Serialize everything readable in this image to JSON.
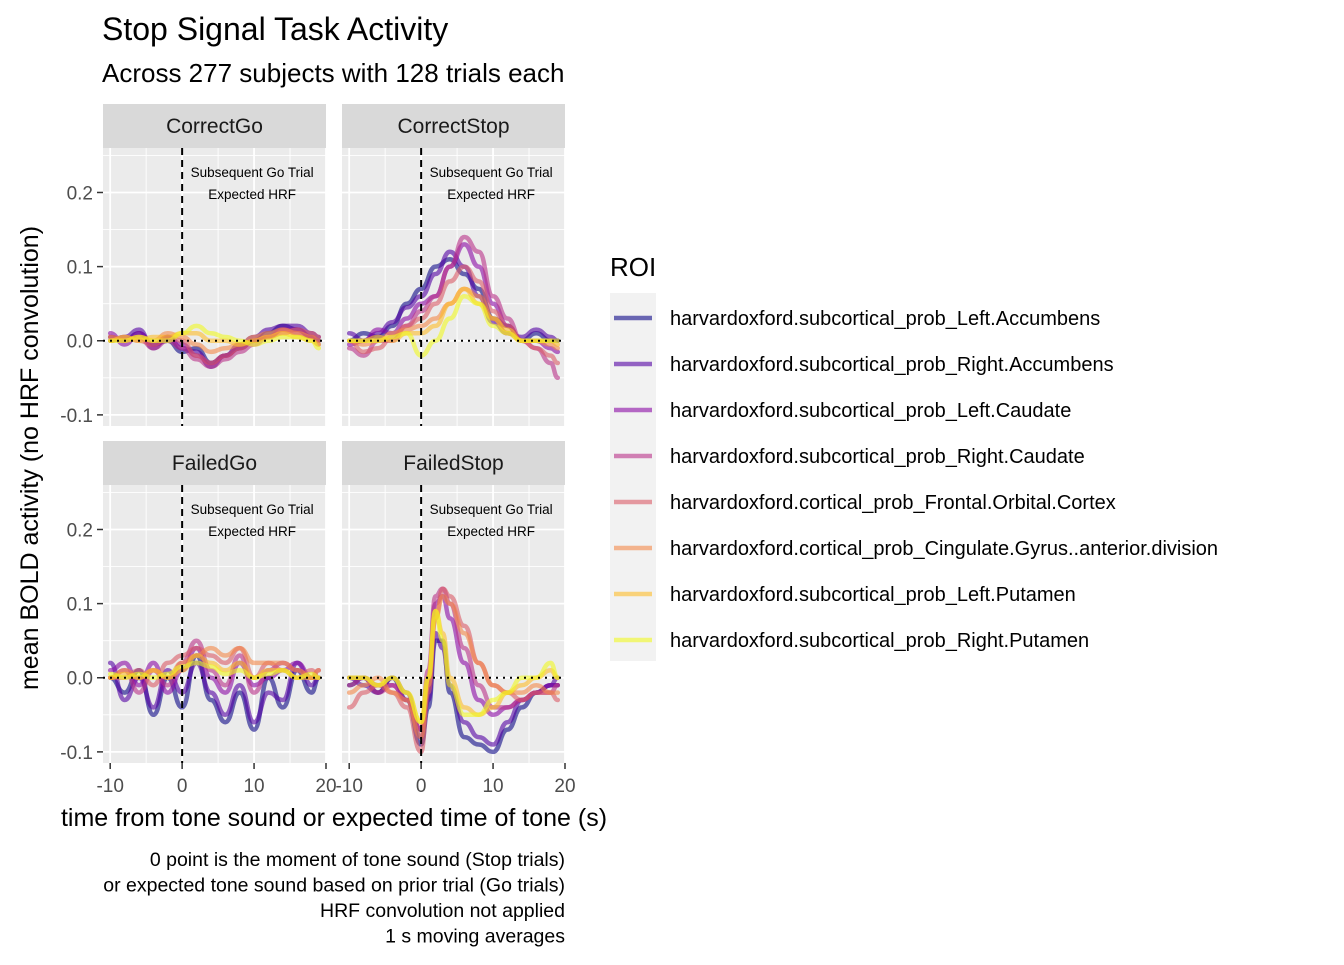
{
  "chart_data": {
    "type": "line",
    "title": "Stop Signal Task Activity",
    "subtitle": "Across 277 subjects with 128 trials each",
    "xlabel": "time from tone sound or expected time of tone (s)",
    "ylabel": "mean BOLD activity (no HRF convolution)",
    "xlim": [
      -11,
      20
    ],
    "ylim": [
      -0.115,
      0.26
    ],
    "x_ticks": [
      -10,
      0,
      10,
      20
    ],
    "x_tick_labels": [
      "-10",
      "0",
      "10",
      "20"
    ],
    "y_ticks": [
      -0.1,
      0.0,
      0.1,
      0.2
    ],
    "y_tick_labels": [
      "-0.1",
      "0.0",
      "0.1",
      "0.2"
    ],
    "grid": true,
    "reference_lines": {
      "vertical_dashed_x": 0,
      "horizontal_dotted_y": 0
    },
    "annotation_lines": [
      "Subsequent Go Trial",
      "Expected HRF"
    ],
    "caption": [
      "0 point is the moment of tone sound (Stop trials)",
      "or expected tone sound based on prior trial (Go trials)",
      "HRF convolution not applied",
      "1 s moving averages"
    ],
    "legend": {
      "title": "ROI",
      "position": "right",
      "entries": [
        {
          "name": "harvardoxford.subcortical_prob_Left.Accumbens",
          "color": "#0D0887"
        },
        {
          "name": "harvardoxford.subcortical_prob_Right.Accumbens",
          "color": "#5402A3"
        },
        {
          "name": "harvardoxford.subcortical_prob_Left.Caudate",
          "color": "#8B0AA5"
        },
        {
          "name": "harvardoxford.subcortical_prob_Right.Caudate",
          "color": "#B93289"
        },
        {
          "name": "harvardoxford.cortical_prob_Frontal.Orbital.Cortex",
          "color": "#DB5C68"
        },
        {
          "name": "harvardoxford.cortical_prob_Cingulate.Gyrus..anterior.division",
          "color": "#F48849"
        },
        {
          "name": "harvardoxford.subcortical_prob_Left.Putamen",
          "color": "#FEBC2A"
        },
        {
          "name": "harvardoxford.subcortical_prob_Right.Putamen",
          "color": "#F0F921"
        }
      ]
    },
    "panels": [
      {
        "name": "CorrectGo",
        "x": [
          -10,
          -8,
          -6,
          -4,
          -2,
          0,
          2,
          4,
          6,
          8,
          10,
          12,
          14,
          16,
          18,
          19
        ],
        "series": [
          {
            "name": "harvardoxford.subcortical_prob_Left.Accumbens",
            "values": [
              0.005,
              0.0,
              0.01,
              -0.005,
              0.0,
              -0.015,
              -0.01,
              -0.03,
              -0.02,
              -0.01,
              0.0,
              0.01,
              0.02,
              0.015,
              0.005,
              0.0
            ]
          },
          {
            "name": "harvardoxford.subcortical_prob_Right.Accumbens",
            "values": [
              0.0,
              0.005,
              0.015,
              -0.01,
              0.005,
              -0.01,
              -0.015,
              -0.035,
              -0.02,
              -0.005,
              0.005,
              0.015,
              0.02,
              0.02,
              0.01,
              0.005
            ]
          },
          {
            "name": "harvardoxford.subcortical_prob_Left.Caudate",
            "values": [
              0.01,
              -0.005,
              0.01,
              -0.005,
              0.005,
              -0.005,
              -0.02,
              -0.03,
              -0.02,
              -0.01,
              0.0,
              0.005,
              0.015,
              0.015,
              0.005,
              0.0
            ]
          },
          {
            "name": "harvardoxford.subcortical_prob_Right.Caudate",
            "values": [
              0.005,
              0.0,
              0.005,
              -0.01,
              0.0,
              -0.01,
              -0.025,
              -0.035,
              -0.025,
              -0.015,
              -0.005,
              0.005,
              0.015,
              0.01,
              0.005,
              -0.005
            ]
          },
          {
            "name": "harvardoxford.cortical_prob_Frontal.Orbital.Cortex",
            "values": [
              0.0,
              0.005,
              0.0,
              -0.005,
              0.005,
              0.0,
              -0.02,
              -0.03,
              -0.02,
              -0.01,
              0.0,
              0.005,
              0.01,
              0.015,
              0.01,
              0.005
            ]
          },
          {
            "name": "harvardoxford.cortical_prob_Cingulate.Gyrus..anterior.division",
            "values": [
              0.005,
              0.0,
              0.005,
              0.0,
              0.01,
              0.005,
              -0.005,
              -0.015,
              -0.01,
              -0.005,
              0.005,
              0.01,
              0.015,
              0.01,
              0.005,
              0.0
            ]
          },
          {
            "name": "harvardoxford.subcortical_prob_Left.Putamen",
            "values": [
              0.0,
              0.005,
              0.0,
              0.005,
              0.005,
              0.01,
              0.01,
              0.0,
              0.0,
              -0.005,
              0.0,
              0.005,
              0.01,
              0.005,
              0.0,
              -0.005
            ]
          },
          {
            "name": "harvardoxford.subcortical_prob_Right.Putamen",
            "values": [
              0.0,
              0.0,
              0.005,
              0.0,
              0.0,
              0.01,
              0.02,
              0.01,
              0.005,
              0.0,
              -0.005,
              0.0,
              0.005,
              0.005,
              0.0,
              -0.01
            ]
          }
        ]
      },
      {
        "name": "CorrectStop",
        "x": [
          -10,
          -8,
          -6,
          -4,
          -2,
          0,
          2,
          4,
          6,
          8,
          10,
          12,
          14,
          16,
          18,
          19
        ],
        "series": [
          {
            "name": "harvardoxford.subcortical_prob_Left.Accumbens",
            "values": [
              0.0,
              0.01,
              0.005,
              0.02,
              0.05,
              0.07,
              0.1,
              0.11,
              0.09,
              0.07,
              0.03,
              0.02,
              0.0,
              0.01,
              0.0,
              0.0
            ]
          },
          {
            "name": "harvardoxford.subcortical_prob_Right.Accumbens",
            "values": [
              0.01,
              0.0,
              0.01,
              0.025,
              0.045,
              0.06,
              0.09,
              0.12,
              0.1,
              0.06,
              0.025,
              0.01,
              0.005,
              0.015,
              0.005,
              0.0
            ]
          },
          {
            "name": "harvardoxford.subcortical_prob_Left.Caudate",
            "values": [
              -0.005,
              0.0,
              0.015,
              0.01,
              0.03,
              0.05,
              0.06,
              0.1,
              0.13,
              0.1,
              0.05,
              0.02,
              0.0,
              0.0,
              -0.01,
              -0.015
            ]
          },
          {
            "name": "harvardoxford.subcortical_prob_Right.Caudate",
            "values": [
              -0.01,
              -0.02,
              0.0,
              0.0,
              0.02,
              0.04,
              0.06,
              0.1,
              0.14,
              0.12,
              0.06,
              0.03,
              0.0,
              -0.01,
              -0.03,
              -0.05
            ]
          },
          {
            "name": "harvardoxford.cortical_prob_Frontal.Orbital.Cortex",
            "values": [
              0.0,
              -0.015,
              -0.01,
              0.005,
              0.02,
              0.03,
              0.05,
              0.08,
              0.1,
              0.08,
              0.04,
              0.02,
              0.0,
              -0.01,
              -0.02,
              -0.03
            ]
          },
          {
            "name": "harvardoxford.cortical_prob_Cingulate.Gyrus..anterior.division",
            "values": [
              0.0,
              -0.005,
              0.0,
              0.01,
              0.015,
              0.02,
              0.03,
              0.05,
              0.07,
              0.06,
              0.03,
              0.01,
              0.0,
              0.0,
              -0.005,
              -0.01
            ]
          },
          {
            "name": "harvardoxford.subcortical_prob_Left.Putamen",
            "values": [
              0.0,
              0.0,
              0.005,
              0.0,
              0.01,
              0.01,
              0.02,
              0.05,
              0.07,
              0.05,
              0.03,
              0.015,
              0.0,
              0.0,
              0.0,
              -0.005
            ]
          },
          {
            "name": "harvardoxford.subcortical_prob_Right.Putamen",
            "values": [
              0.0,
              0.0,
              0.0,
              0.005,
              0.01,
              -0.02,
              0.0,
              0.03,
              0.06,
              0.05,
              0.02,
              0.01,
              0.0,
              0.0,
              0.0,
              0.0
            ]
          }
        ]
      },
      {
        "name": "FailedGo",
        "x": [
          -10,
          -8,
          -6,
          -4,
          -2,
          0,
          2,
          4,
          6,
          8,
          10,
          12,
          14,
          16,
          18,
          19
        ],
        "series": [
          {
            "name": "harvardoxford.subcortical_prob_Left.Accumbens",
            "values": [
              0.0,
              -0.02,
              0.01,
              -0.05,
              0.0,
              -0.04,
              0.03,
              -0.03,
              -0.06,
              -0.02,
              -0.07,
              0.0,
              -0.04,
              0.01,
              -0.02,
              0.0
            ]
          },
          {
            "name": "harvardoxford.subcortical_prob_Right.Accumbens",
            "values": [
              0.02,
              -0.03,
              0.0,
              -0.04,
              0.01,
              -0.02,
              0.02,
              -0.02,
              -0.05,
              -0.01,
              -0.06,
              -0.02,
              -0.03,
              0.02,
              -0.01,
              0.0
            ]
          },
          {
            "name": "harvardoxford.subcortical_prob_Left.Caudate",
            "values": [
              0.01,
              0.02,
              -0.01,
              0.02,
              -0.02,
              0.01,
              0.04,
              0.0,
              -0.02,
              0.02,
              -0.01,
              0.0,
              0.01,
              0.02,
              0.0,
              0.0
            ]
          },
          {
            "name": "harvardoxford.subcortical_prob_Right.Caudate",
            "values": [
              0.0,
              0.01,
              -0.02,
              0.01,
              -0.01,
              0.02,
              0.05,
              0.01,
              -0.01,
              0.03,
              -0.02,
              0.01,
              0.02,
              0.01,
              0.0,
              0.01
            ]
          },
          {
            "name": "harvardoxford.cortical_prob_Frontal.Orbital.Cortex",
            "values": [
              0.0,
              0.0,
              0.01,
              -0.01,
              0.02,
              0.03,
              0.04,
              0.03,
              0.02,
              0.04,
              0.0,
              0.02,
              0.01,
              0.0,
              0.01,
              0.0
            ]
          },
          {
            "name": "harvardoxford.cortical_prob_Cingulate.Gyrus..anterior.division",
            "values": [
              0.0,
              0.01,
              0.0,
              0.01,
              0.0,
              0.02,
              0.03,
              0.04,
              0.03,
              0.04,
              0.02,
              0.02,
              0.02,
              0.01,
              0.0,
              0.01
            ]
          },
          {
            "name": "harvardoxford.subcortical_prob_Left.Putamen",
            "values": [
              0.0,
              0.005,
              0.0,
              0.01,
              0.0,
              0.01,
              0.03,
              0.02,
              0.01,
              0.02,
              0.0,
              0.01,
              0.01,
              0.0,
              0.0,
              0.0
            ]
          },
          {
            "name": "harvardoxford.subcortical_prob_Right.Putamen",
            "values": [
              0.005,
              0.0,
              0.005,
              0.0,
              0.005,
              0.015,
              0.02,
              0.015,
              0.005,
              0.01,
              0.0,
              0.005,
              0.01,
              0.0,
              0.005,
              0.0
            ]
          }
        ]
      },
      {
        "name": "FailedStop",
        "x": [
          -10,
          -8,
          -6,
          -4,
          -2,
          0,
          1,
          2,
          3,
          4,
          6,
          8,
          10,
          12,
          14,
          16,
          18,
          19
        ],
        "series": [
          {
            "name": "harvardoxford.subcortical_prob_Left.Accumbens",
            "values": [
              -0.01,
              0.0,
              -0.02,
              0.0,
              -0.03,
              -0.09,
              -0.04,
              0.05,
              0.05,
              -0.02,
              -0.08,
              -0.09,
              -0.1,
              -0.07,
              -0.04,
              -0.02,
              -0.01,
              -0.01
            ]
          },
          {
            "name": "harvardoxford.subcortical_prob_Right.Accumbens",
            "values": [
              0.0,
              -0.01,
              -0.02,
              0.0,
              -0.02,
              -0.08,
              -0.03,
              0.06,
              0.04,
              -0.01,
              -0.06,
              -0.08,
              -0.09,
              -0.06,
              -0.03,
              -0.02,
              -0.01,
              0.0
            ]
          },
          {
            "name": "harvardoxford.subcortical_prob_Left.Caudate",
            "values": [
              0.0,
              0.0,
              -0.01,
              -0.01,
              -0.03,
              -0.07,
              0.0,
              0.1,
              0.11,
              0.08,
              0.02,
              -0.03,
              -0.05,
              -0.04,
              -0.03,
              -0.02,
              -0.01,
              -0.01
            ]
          },
          {
            "name": "harvardoxford.subcortical_prob_Right.Caudate",
            "values": [
              -0.01,
              0.0,
              -0.02,
              -0.01,
              -0.03,
              -0.07,
              0.01,
              0.11,
              0.12,
              0.1,
              0.04,
              -0.01,
              -0.04,
              -0.04,
              -0.03,
              -0.02,
              -0.02,
              -0.01
            ]
          },
          {
            "name": "harvardoxford.cortical_prob_Frontal.Orbital.Cortex",
            "values": [
              -0.04,
              -0.02,
              -0.01,
              -0.02,
              -0.04,
              -0.1,
              -0.02,
              0.08,
              0.12,
              0.11,
              0.07,
              0.02,
              -0.01,
              -0.02,
              -0.03,
              -0.02,
              -0.02,
              -0.03
            ]
          },
          {
            "name": "harvardoxford.cortical_prob_Cingulate.Gyrus..anterior.division",
            "values": [
              -0.02,
              -0.01,
              0.0,
              -0.02,
              -0.03,
              -0.08,
              -0.01,
              0.08,
              0.11,
              0.1,
              0.06,
              0.02,
              -0.01,
              -0.02,
              -0.02,
              -0.01,
              -0.02,
              -0.02
            ]
          },
          {
            "name": "harvardoxford.subcortical_prob_Left.Putamen",
            "values": [
              0.0,
              0.0,
              -0.01,
              0.0,
              -0.02,
              -0.06,
              0.0,
              0.09,
              0.06,
              0.0,
              -0.04,
              -0.05,
              -0.04,
              -0.02,
              -0.01,
              0.0,
              0.01,
              0.0
            ]
          },
          {
            "name": "harvardoxford.subcortical_prob_Right.Putamen",
            "values": [
              0.0,
              0.0,
              -0.01,
              0.0,
              -0.02,
              -0.06,
              0.0,
              0.09,
              0.05,
              -0.01,
              -0.05,
              -0.05,
              -0.03,
              -0.02,
              0.0,
              0.0,
              0.02,
              0.0
            ]
          }
        ]
      }
    ]
  }
}
